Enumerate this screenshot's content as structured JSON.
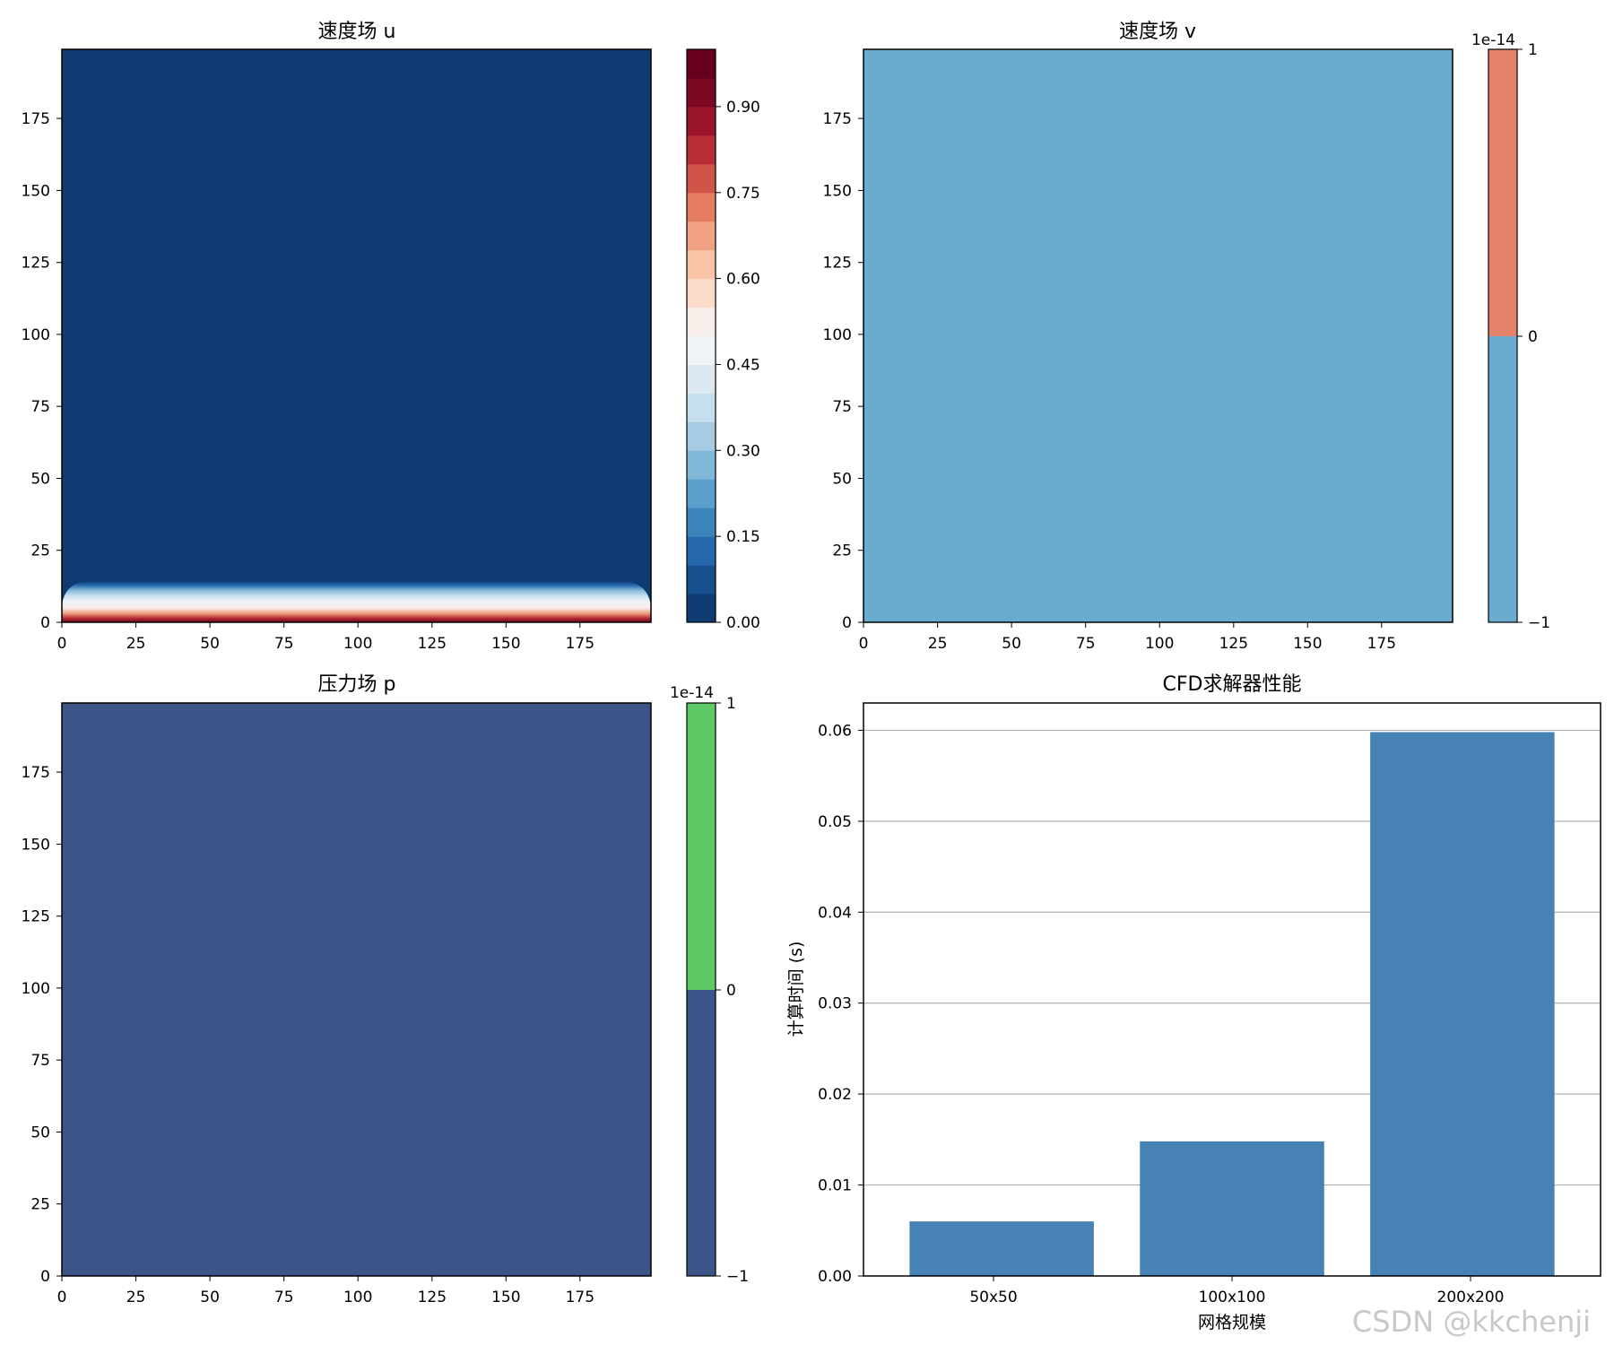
{
  "figure": {
    "watermark": "CSDN @kkchenji"
  },
  "chart_data": [
    {
      "type": "heatmap",
      "title": "速度场 u",
      "xlabel": "",
      "ylabel": "",
      "xlim": [
        0,
        199
      ],
      "ylim": [
        0,
        199
      ],
      "x_ticks": [
        "0",
        "25",
        "50",
        "75",
        "100",
        "125",
        "150",
        "175"
      ],
      "y_ticks": [
        "0",
        "25",
        "50",
        "75",
        "100",
        "125",
        "150",
        "175"
      ],
      "field_description": "u = 1 on bottom wall, decaying to 0 within ~12 cells; 0 elsewhere",
      "boundary_layer_top": 12,
      "colormap": "RdBu_r",
      "colorbar": {
        "range": [
          0,
          1
        ],
        "ticks": [
          "0.00",
          "0.15",
          "0.30",
          "0.45",
          "0.60",
          "0.75",
          "0.90"
        ],
        "levels": 20,
        "colors": [
          "#0d3b72",
          "#18508f",
          "#2668ad",
          "#3b84bc",
          "#5a9ecb",
          "#80b6d7",
          "#a5cce3",
          "#c5dfee",
          "#dce9f1",
          "#eef3f7",
          "#f8eeea",
          "#fbdcca",
          "#f9c3a6",
          "#f1a283",
          "#e57d62",
          "#d05548",
          "#b92e36",
          "#9a1429",
          "#7a0822",
          "#67001f"
        ]
      },
      "background_color": "#0d3b72"
    },
    {
      "type": "heatmap",
      "title": "速度场 v",
      "xlabel": "",
      "ylabel": "",
      "xlim": [
        0,
        199
      ],
      "ylim": [
        0,
        199
      ],
      "x_ticks": [
        "0",
        "25",
        "50",
        "75",
        "100",
        "125",
        "150",
        "175"
      ],
      "y_ticks": [
        "0",
        "25",
        "50",
        "75",
        "100",
        "125",
        "150",
        "175"
      ],
      "field_value": 0,
      "colorbar": {
        "range": [
          -1,
          1
        ],
        "scale_label": "1e-14",
        "ticks": [
          "−1",
          "0",
          "1"
        ],
        "colors": [
          "#6aacd0",
          "#e4826a"
        ]
      },
      "background_color": "#6aacd0"
    },
    {
      "type": "heatmap",
      "title": "压力场 p",
      "xlabel": "",
      "ylabel": "",
      "xlim": [
        0,
        199
      ],
      "ylim": [
        0,
        199
      ],
      "x_ticks": [
        "0",
        "25",
        "50",
        "75",
        "100",
        "125",
        "150",
        "175"
      ],
      "y_ticks": [
        "0",
        "25",
        "50",
        "75",
        "100",
        "125",
        "150",
        "175"
      ],
      "field_value": 0,
      "colorbar": {
        "range": [
          -1,
          1
        ],
        "scale_label": "1e-14",
        "ticks": [
          "−1",
          "0",
          "1"
        ],
        "colors": [
          "#3d5489",
          "#5fc966"
        ]
      },
      "background_color": "#3d5489"
    },
    {
      "type": "bar",
      "title": "CFD求解器性能",
      "xlabel": "网格规模",
      "ylabel": "计算时间 (s)",
      "categories": [
        "50x50",
        "100x100",
        "200x200"
      ],
      "values": [
        0.006,
        0.0148,
        0.0598
      ],
      "ylim": [
        0,
        0.063
      ],
      "y_ticks": [
        "0.00",
        "0.01",
        "0.02",
        "0.03",
        "0.04",
        "0.05",
        "0.06"
      ],
      "grid": "y",
      "bar_color": "#4682b4"
    }
  ]
}
